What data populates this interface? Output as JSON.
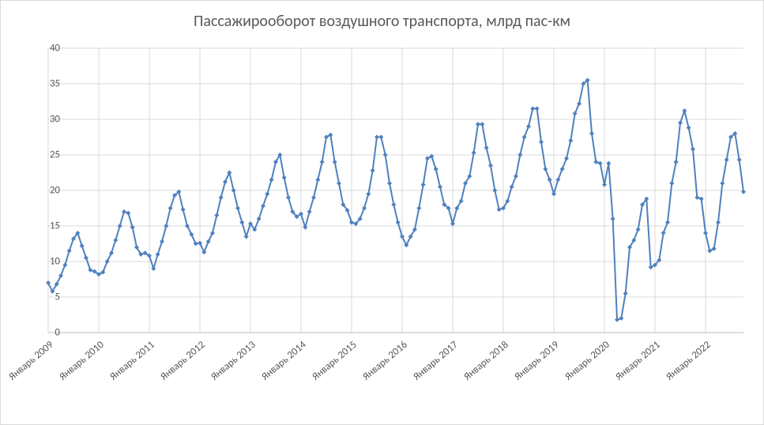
{
  "chart": {
    "type": "line",
    "title": "Пассажирооборот воздушного транспорта, млрд пас-км",
    "title_fontsize": 20,
    "background_color": "#ffffff",
    "border_color": "#d9d9d9",
    "grid_color": "#d9d9d9",
    "axis_color": "#bfbfbf",
    "text_color": "#595959",
    "x_labels": [
      "Январь 2009",
      "Январь 2010",
      "Январь 2011",
      "Январь 2012",
      "Январь 2013",
      "Январь 2014",
      "Январь 2015",
      "Январь 2016",
      "Январь 2017",
      "Январь 2018",
      "Январь 2019",
      "Январь 2020",
      "Январь 2021",
      "Январь 2022"
    ],
    "x_label_step_months": 12,
    "x_label_rotation": -40,
    "ylim": [
      0,
      40
    ],
    "ytick_step": 5,
    "label_fontsize": 13,
    "series": {
      "color": "#4f81bd",
      "line_width": 2,
      "marker": "diamond",
      "marker_size": 6,
      "values": [
        7.0,
        5.8,
        6.8,
        8.0,
        9.5,
        11.5,
        13.2,
        14.0,
        12.2,
        10.5,
        8.8,
        8.6,
        8.2,
        8.5,
        10.0,
        11.2,
        13.0,
        15.0,
        17.0,
        16.8,
        14.8,
        12.0,
        11.0,
        11.2,
        10.8,
        9.0,
        11.0,
        12.8,
        15.0,
        17.5,
        19.3,
        19.8,
        17.3,
        15.0,
        13.8,
        12.5,
        12.6,
        11.3,
        12.8,
        14.0,
        16.5,
        19.0,
        21.2,
        22.5,
        20.0,
        17.5,
        15.5,
        13.5,
        15.3,
        14.5,
        16.0,
        17.8,
        19.5,
        21.5,
        24.0,
        25.0,
        21.8,
        19.0,
        17.0,
        16.3,
        16.7,
        14.8,
        17.0,
        19.0,
        21.5,
        24.0,
        27.5,
        27.8,
        24.0,
        21.0,
        18.0,
        17.2,
        15.5,
        15.3,
        16.0,
        17.5,
        19.5,
        22.8,
        27.5,
        27.5,
        25.0,
        21.0,
        18.0,
        15.5,
        13.5,
        12.3,
        13.5,
        14.5,
        17.5,
        20.8,
        24.5,
        24.8,
        23.0,
        20.5,
        18.0,
        17.5,
        15.3,
        17.5,
        18.5,
        21.0,
        22.0,
        25.3,
        29.3,
        29.3,
        26.0,
        23.5,
        20.0,
        17.3,
        17.5,
        18.5,
        20.5,
        22.0,
        25.0,
        27.5,
        29.0,
        31.5,
        31.5,
        26.8,
        23.0,
        21.5,
        19.5,
        21.5,
        23.0,
        24.5,
        27.0,
        30.8,
        32.2,
        35.0,
        35.5,
        28.0,
        24.0,
        23.8,
        20.8,
        23.8,
        16.0,
        1.8,
        2.0,
        5.5,
        12.0,
        13.0,
        14.5,
        18.0,
        18.8,
        9.2,
        9.5,
        10.2,
        14.0,
        15.5,
        21.0,
        24.0,
        29.5,
        31.2,
        28.8,
        25.8,
        19.0,
        18.8,
        14.0,
        11.5,
        11.8,
        15.5,
        21.0,
        24.3,
        27.5,
        28.0,
        24.3,
        19.8
      ]
    }
  }
}
